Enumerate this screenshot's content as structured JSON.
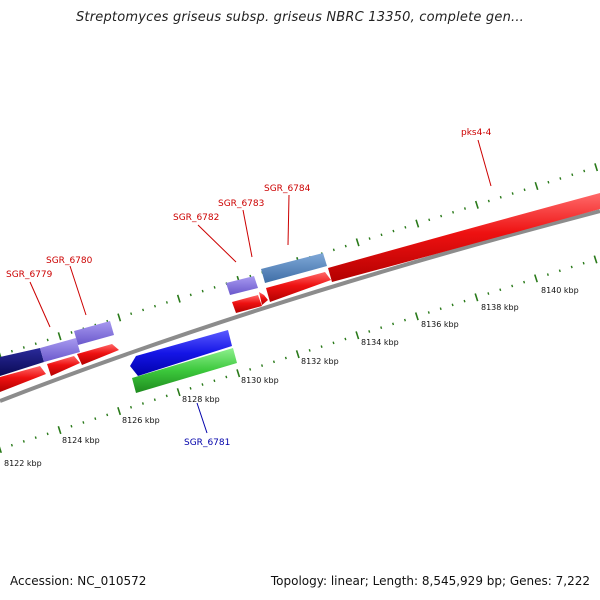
{
  "title": "Streptomyces griseus subsp. griseus NBRC 13350, complete gen...",
  "footer": {
    "accession": "Accession: NC_010572",
    "stats": "Topology: linear; Length: 8,545,929 bp; Genes: 7,222"
  },
  "colors": {
    "axis": "#888888",
    "tick": "#2a7a1a",
    "red_gene": "#ee1111",
    "label_red": "#cc0000",
    "label_blue": "#0000aa"
  },
  "kbp_labels": [
    "8122 kbp",
    "8124 kbp",
    "8126 kbp",
    "8128 kbp",
    "8130 kbp",
    "8132 kbp",
    "8134 kbp",
    "8136 kbp",
    "8138 kbp",
    "8140 kbp"
  ],
  "gene_labels": [
    {
      "text": "SGR_6779",
      "color": "red"
    },
    {
      "text": "SGR_6780",
      "color": "red"
    },
    {
      "text": "SGR_6782",
      "color": "red"
    },
    {
      "text": "SGR_6783",
      "color": "red"
    },
    {
      "text": "SGR_6784",
      "color": "red"
    },
    {
      "text": "pks4-4",
      "color": "red"
    },
    {
      "text": "SGR_6781",
      "color": "blue"
    }
  ]
}
